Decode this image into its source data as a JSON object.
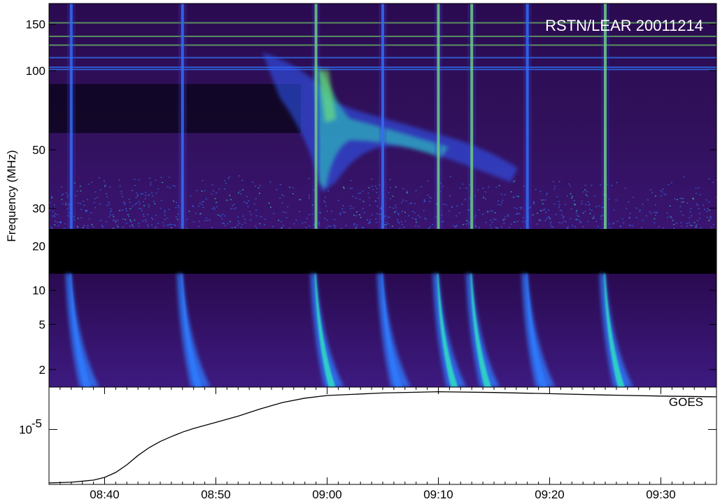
{
  "chart_data": [
    {
      "type": "heatmap",
      "title": "RSTN/LEAR 20011214",
      "ylabel": "Frequency (MHz)",
      "yscale": "log",
      "ylim": [
        1.4,
        180
      ],
      "yticks": [
        {
          "value": 150,
          "label": "150"
        },
        {
          "value": 100,
          "label": "100"
        },
        {
          "value": 50,
          "label": "50"
        },
        {
          "value": 30,
          "label": "30"
        },
        {
          "value": 20,
          "label": "20"
        },
        {
          "value": 10,
          "label": "10"
        },
        {
          "value": 5,
          "label": "5"
        },
        {
          "value": 2,
          "label": "2"
        }
      ],
      "data_gap_mhz": [
        14,
        25
      ],
      "colormap": [
        "#000000",
        "#2a0a4a",
        "#4a1a8a",
        "#3a3ad0",
        "#2f7cff",
        "#2ee8c0",
        "#7dff6a"
      ],
      "type_iii_burst_times": [
        "08:37",
        "08:47",
        "08:59",
        "09:05",
        "09:10",
        "09:13",
        "09:18",
        "09:25"
      ],
      "type_ii_burst": {
        "start": "08:55",
        "end": "09:10",
        "freq_mhz": [
          40,
          120
        ]
      }
    },
    {
      "type": "line",
      "series": [
        {
          "name": "GOES",
          "x": [
            "08:35",
            "08:37",
            "08:39",
            "08:40",
            "08:41",
            "08:42",
            "08:43",
            "08:44",
            "08:45",
            "08:46",
            "08:47",
            "08:48",
            "08:50",
            "08:52",
            "08:54",
            "08:56",
            "08:58",
            "09:00",
            "09:05",
            "09:10",
            "09:15",
            "09:20",
            "09:25",
            "09:30",
            "09:35"
          ],
          "y": [
            3.5e-06,
            3.55e-06,
            3.7e-06,
            3.9e-06,
            4.3e-06,
            5e-06,
            6e-06,
            7e-06,
            7.9e-06,
            8.7e-06,
            9.5e-06,
            1.02e-05,
            1.15e-05,
            1.3e-05,
            1.5e-05,
            1.7e-05,
            1.85e-05,
            1.95e-05,
            2.05e-05,
            2.1e-05,
            2.07e-05,
            2.02e-05,
            1.97e-05,
            1.93e-05,
            1.9e-05
          ]
        }
      ],
      "yscale": "log",
      "ylim": [
        3.4e-06,
        2.3e-05
      ],
      "ytick": {
        "value": 1e-05,
        "label_base": "10",
        "label_exp": "-5"
      },
      "xlim": [
        "08:35",
        "09:35"
      ],
      "xticks": [
        "08:40",
        "08:50",
        "09:00",
        "09:10",
        "09:20",
        "09:30"
      ]
    }
  ]
}
